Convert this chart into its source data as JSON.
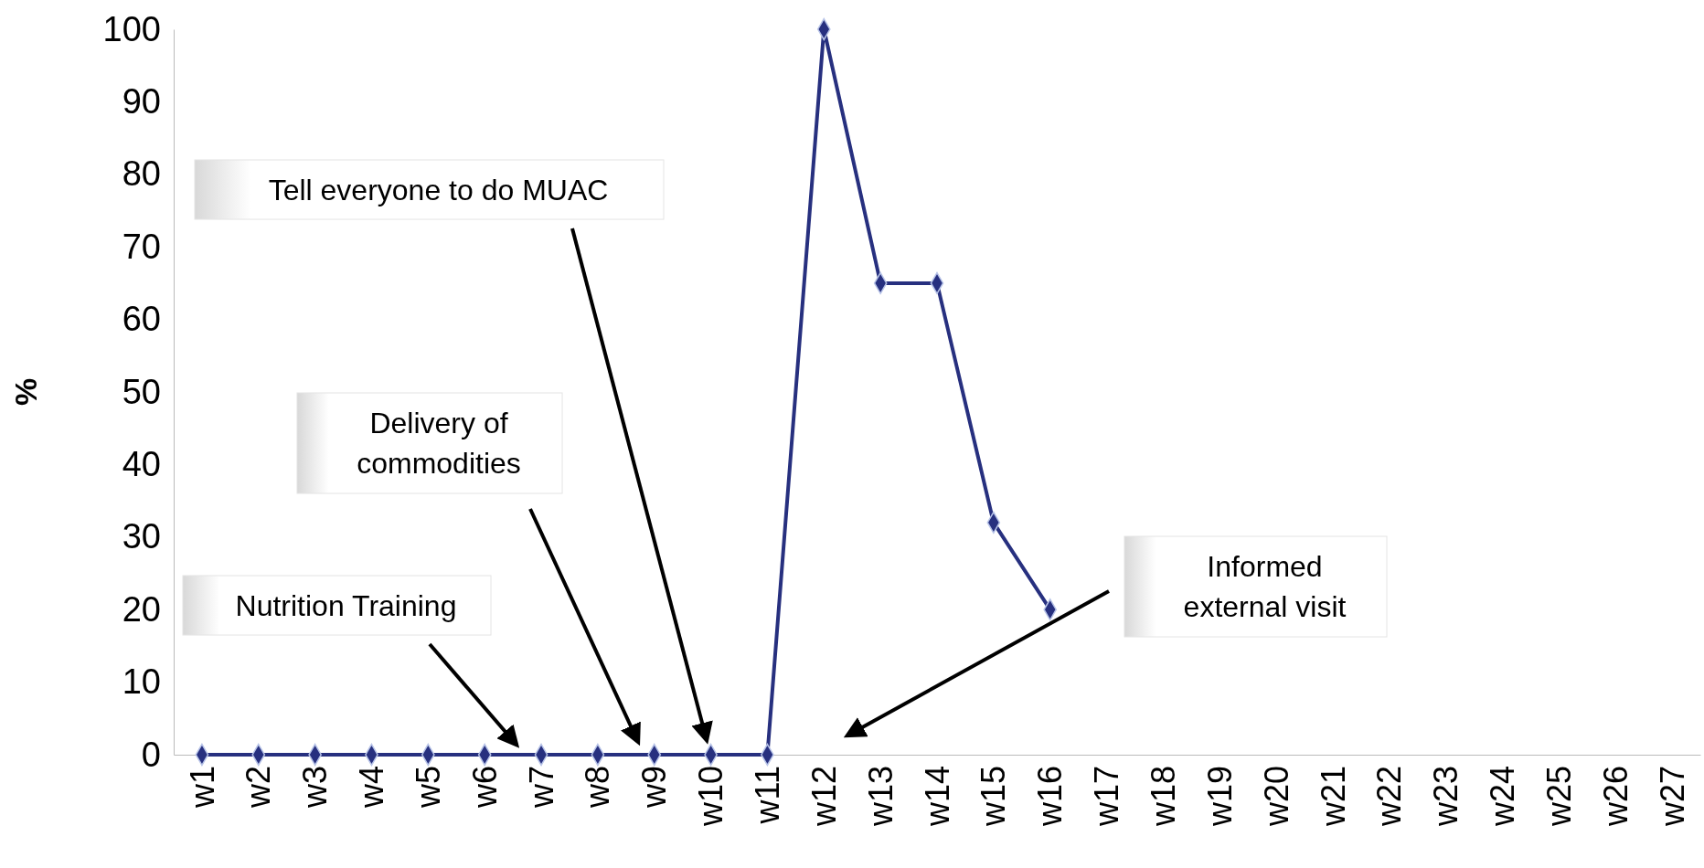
{
  "chart_data": {
    "type": "line",
    "ylabel": "%",
    "categories": [
      "w1",
      "w2",
      "w3",
      "w4",
      "w5",
      "w6",
      "w7",
      "w8",
      "w9",
      "w10",
      "w11",
      "w12",
      "w13",
      "w14",
      "w15",
      "w16",
      "w17",
      "w18",
      "w19",
      "w20",
      "w21",
      "w22",
      "w23",
      "w24",
      "w25",
      "w26",
      "w27"
    ],
    "series": [
      {
        "color": "#27307f",
        "values": [
          0,
          0,
          0,
          0,
          0,
          0,
          0,
          0,
          0,
          0,
          0,
          100,
          65,
          65,
          32,
          20,
          null,
          null,
          null,
          null,
          null,
          null,
          null,
          null,
          null,
          null,
          null
        ]
      }
    ],
    "ylim": [
      0,
      100
    ],
    "yticks": [
      0,
      10,
      20,
      30,
      40,
      50,
      60,
      70,
      80,
      90,
      100
    ],
    "grid": false,
    "marker": "diamond",
    "line_style": "solid",
    "annotations": [
      "Nutrition Training",
      "Delivery of commodities",
      "Tell everyone to do MUAC",
      "Informed external visit"
    ]
  }
}
